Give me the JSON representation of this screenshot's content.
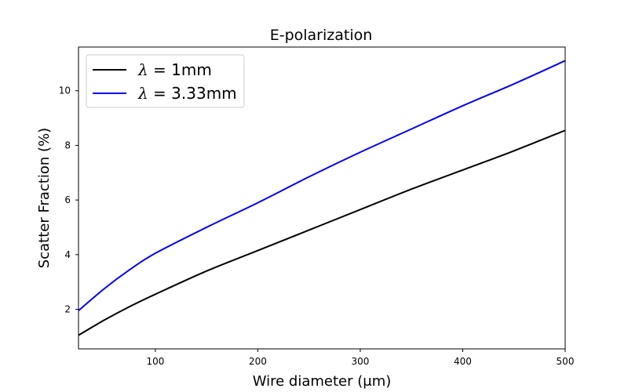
{
  "chart_data": {
    "type": "line",
    "title": "E-polarization",
    "xlabel": "Wire diameter (μm)",
    "ylabel": "Scatter Fraction (%)",
    "xlim": [
      25,
      500
    ],
    "ylim": [
      0.55,
      11.6
    ],
    "xticks": [
      100,
      200,
      300,
      400,
      500
    ],
    "yticks": [
      2,
      4,
      6,
      8,
      10
    ],
    "grid": false,
    "legend_position": "upper-left",
    "series": [
      {
        "name": "λ = 1mm",
        "label_symbol": "λ",
        "label_rest": " = 1mm",
        "color": "#000000",
        "x": [
          25,
          50,
          75,
          100,
          150,
          200,
          250,
          300,
          350,
          400,
          450,
          500
        ],
        "y": [
          1.05,
          1.6,
          2.1,
          2.55,
          3.4,
          4.15,
          4.9,
          5.65,
          6.4,
          7.1,
          7.8,
          8.55
        ]
      },
      {
        "name": "λ = 3.33mm",
        "label_symbol": "λ",
        "label_rest": " = 3.33mm",
        "color": "#0000ff",
        "x": [
          25,
          50,
          75,
          100,
          150,
          200,
          250,
          300,
          350,
          400,
          450,
          500
        ],
        "y": [
          1.95,
          2.75,
          3.45,
          4.05,
          5.0,
          5.9,
          6.85,
          7.75,
          8.6,
          9.45,
          10.25,
          11.1
        ]
      }
    ]
  }
}
